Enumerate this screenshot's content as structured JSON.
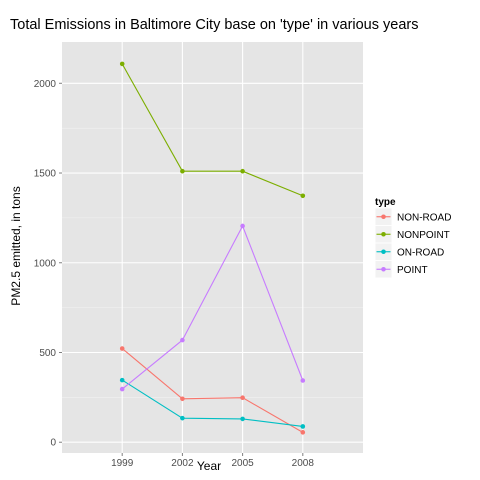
{
  "chart_data": {
    "type": "line",
    "title": "Total Emissions in Baltimore City base on 'type' in various years",
    "xlabel": "Year",
    "ylabel": "PM2.5 emitted, in tons",
    "x": [
      "1999",
      "2002",
      "2005",
      "2008"
    ],
    "y_ticks": [
      "0",
      "500",
      "1000",
      "1500",
      "2000"
    ],
    "ylim": [
      -60,
      2230
    ],
    "grid": true,
    "legend_position": "right",
    "legend_title": "type",
    "series": [
      {
        "name": "NON-ROAD",
        "color": "#f8766d",
        "values": [
          522,
          242,
          248,
          55
        ]
      },
      {
        "name": "NONPOINT",
        "color": "#7cae00",
        "values": [
          2108,
          1510,
          1510,
          1373
        ]
      },
      {
        "name": "ON-ROAD",
        "color": "#00bfc4",
        "values": [
          346,
          134,
          130,
          88
        ]
      },
      {
        "name": "POINT",
        "color": "#c77cff",
        "values": [
          296,
          569,
          1205,
          344
        ]
      }
    ]
  }
}
